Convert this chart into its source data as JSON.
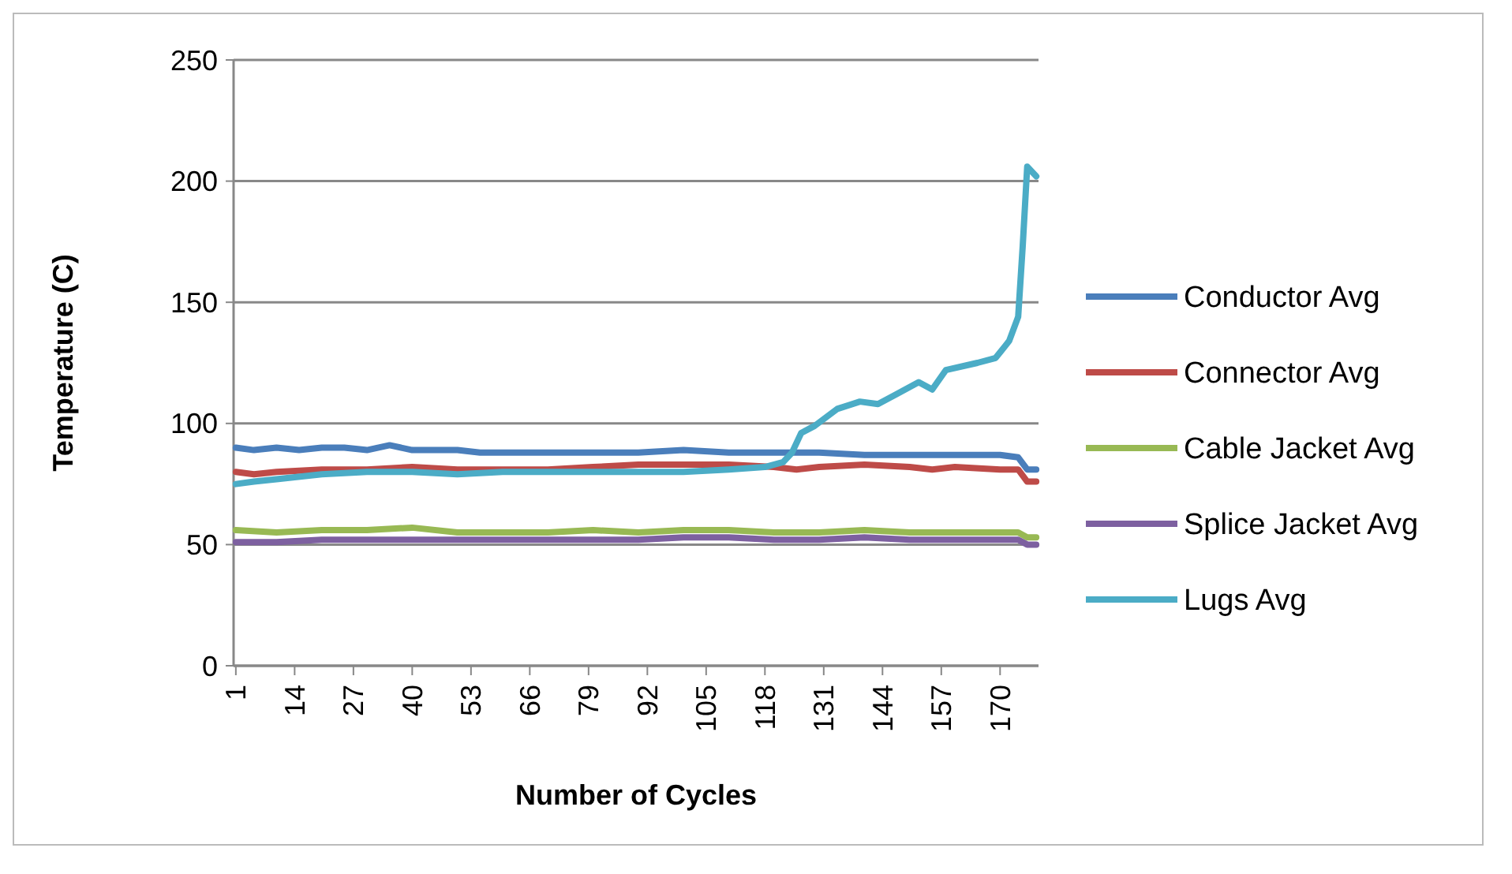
{
  "chart_data": {
    "type": "line",
    "xlabel": "Number of Cycles",
    "ylabel": "Temperature (C)",
    "xlim": [
      0.5,
      178.5
    ],
    "xticks": [
      1,
      14,
      27,
      40,
      53,
      66,
      79,
      92,
      105,
      118,
      131,
      144,
      157,
      170
    ],
    "ylim": [
      0,
      250
    ],
    "yticks": [
      0,
      50,
      100,
      150,
      200,
      250
    ],
    "grid": "y",
    "legend": "right",
    "marker": "none",
    "line_style": "solid",
    "series": [
      {
        "name": "Conductor Avg",
        "color": "#4a7ebb",
        "x": [
          1,
          5,
          10,
          15,
          20,
          25,
          30,
          35,
          40,
          45,
          50,
          55,
          60,
          70,
          80,
          90,
          100,
          110,
          120,
          130,
          140,
          150,
          160,
          170,
          174,
          176,
          178
        ],
        "values": [
          90,
          89,
          90,
          89,
          90,
          90,
          89,
          91,
          89,
          89,
          89,
          88,
          88,
          88,
          88,
          88,
          89,
          88,
          88,
          88,
          87,
          87,
          87,
          87,
          86,
          81,
          81
        ]
      },
      {
        "name": "Connector Avg",
        "color": "#be4b48",
        "x": [
          1,
          5,
          10,
          20,
          30,
          40,
          50,
          60,
          70,
          80,
          90,
          100,
          110,
          120,
          125,
          130,
          140,
          150,
          155,
          160,
          170,
          174,
          176,
          178
        ],
        "values": [
          80,
          79,
          80,
          81,
          81,
          82,
          81,
          81,
          81,
          82,
          83,
          83,
          83,
          82,
          81,
          82,
          83,
          82,
          81,
          82,
          81,
          81,
          76,
          76
        ]
      },
      {
        "name": "Cable Jacket Avg",
        "color": "#98b954",
        "x": [
          1,
          10,
          20,
          30,
          40,
          50,
          60,
          70,
          80,
          90,
          100,
          110,
          120,
          130,
          140,
          150,
          160,
          170,
          174,
          176,
          178
        ],
        "values": [
          56,
          55,
          56,
          56,
          57,
          55,
          55,
          55,
          56,
          55,
          56,
          56,
          55,
          55,
          56,
          55,
          55,
          55,
          55,
          53,
          53
        ]
      },
      {
        "name": "Splice Jacket Avg",
        "color": "#7d60a0",
        "x": [
          1,
          10,
          20,
          30,
          40,
          50,
          60,
          70,
          80,
          90,
          100,
          110,
          120,
          130,
          140,
          150,
          160,
          170,
          174,
          176,
          178
        ],
        "values": [
          51,
          51,
          52,
          52,
          52,
          52,
          52,
          52,
          52,
          52,
          53,
          53,
          52,
          52,
          53,
          52,
          52,
          52,
          52,
          50,
          50
        ]
      },
      {
        "name": "Lugs Avg",
        "color": "#4bacc6",
        "x": [
          1,
          5,
          10,
          20,
          30,
          40,
          50,
          60,
          70,
          80,
          90,
          100,
          110,
          118,
          122,
          124,
          126,
          129,
          134,
          139,
          143,
          147,
          152,
          155,
          158,
          165,
          169,
          172,
          174,
          175,
          176,
          178
        ],
        "values": [
          75,
          76,
          77,
          79,
          80,
          80,
          79,
          80,
          80,
          80,
          80,
          80,
          81,
          82,
          84,
          88,
          96,
          99,
          106,
          109,
          108,
          112,
          117,
          114,
          122,
          125,
          127,
          134,
          144,
          173,
          206,
          202
        ]
      }
    ]
  }
}
